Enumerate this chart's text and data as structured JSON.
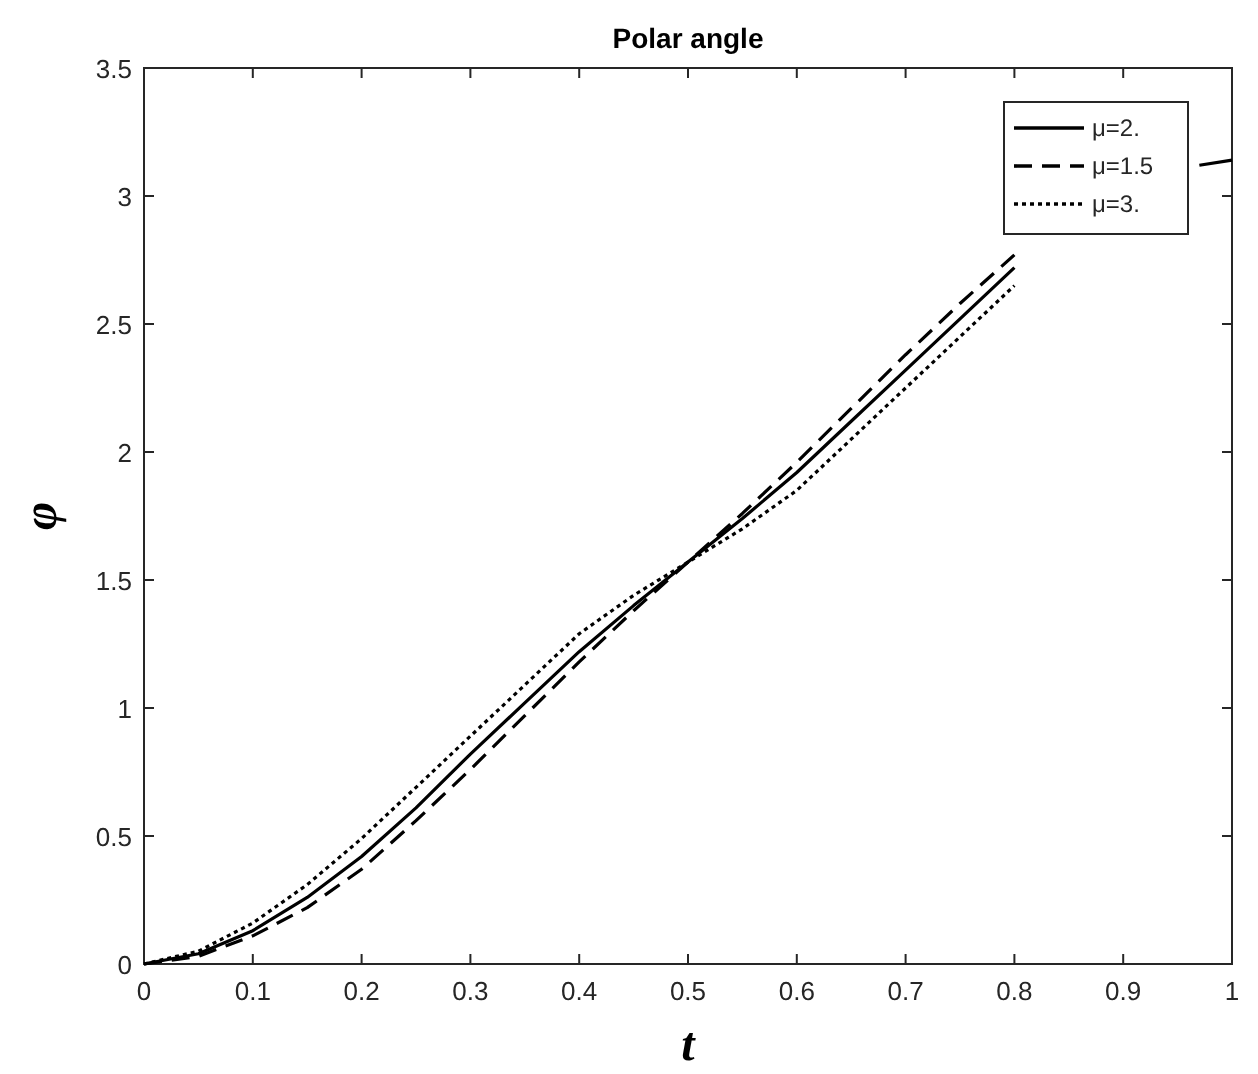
{
  "chart_data": {
    "type": "line",
    "title": "Polar angle",
    "xlabel": "t",
    "ylabel": "φ",
    "x": [
      0,
      0.05,
      0.1,
      0.15,
      0.2,
      0.25,
      0.3,
      0.35,
      0.4,
      0.45,
      0.5,
      0.55,
      0.6,
      0.65,
      0.7,
      0.75,
      0.8,
      0.9,
      0.97,
      1
    ],
    "series": [
      {
        "name": "μ=2.",
        "color": "#000000",
        "line_style": "solid",
        "values": [
          0,
          0.04,
          0.13,
          0.26,
          0.42,
          0.61,
          0.82,
          1.02,
          1.22,
          1.4,
          1.57,
          1.74,
          1.92,
          2.12,
          2.32,
          2.52,
          2.72,
          null,
          3.12,
          3.14
        ]
      },
      {
        "name": "μ=1.5",
        "color": "#000000",
        "line_style": "dashed",
        "values": [
          0,
          0.03,
          0.11,
          0.22,
          0.37,
          0.56,
          0.76,
          0.97,
          1.18,
          1.38,
          1.57,
          1.76,
          1.96,
          2.17,
          2.38,
          2.58,
          2.77,
          null,
          null,
          null
        ]
      },
      {
        "name": "μ=3.",
        "color": "#000000",
        "line_style": "dotted",
        "values": [
          0,
          0.05,
          0.16,
          0.31,
          0.49,
          0.69,
          0.89,
          1.09,
          1.29,
          1.44,
          1.57,
          1.7,
          1.85,
          2.05,
          2.25,
          2.45,
          2.65,
          null,
          null,
          null
        ]
      }
    ],
    "xlim": [
      0,
      1
    ],
    "xticks": [
      0,
      0.1,
      0.2,
      0.3,
      0.4,
      0.5,
      0.6,
      0.7,
      0.8,
      0.9,
      1
    ],
    "ylim": [
      0,
      3.5
    ],
    "yticks": [
      0,
      0.5,
      1,
      1.5,
      2,
      2.5,
      3,
      3.5
    ],
    "grid": false,
    "legend": "top right"
  }
}
